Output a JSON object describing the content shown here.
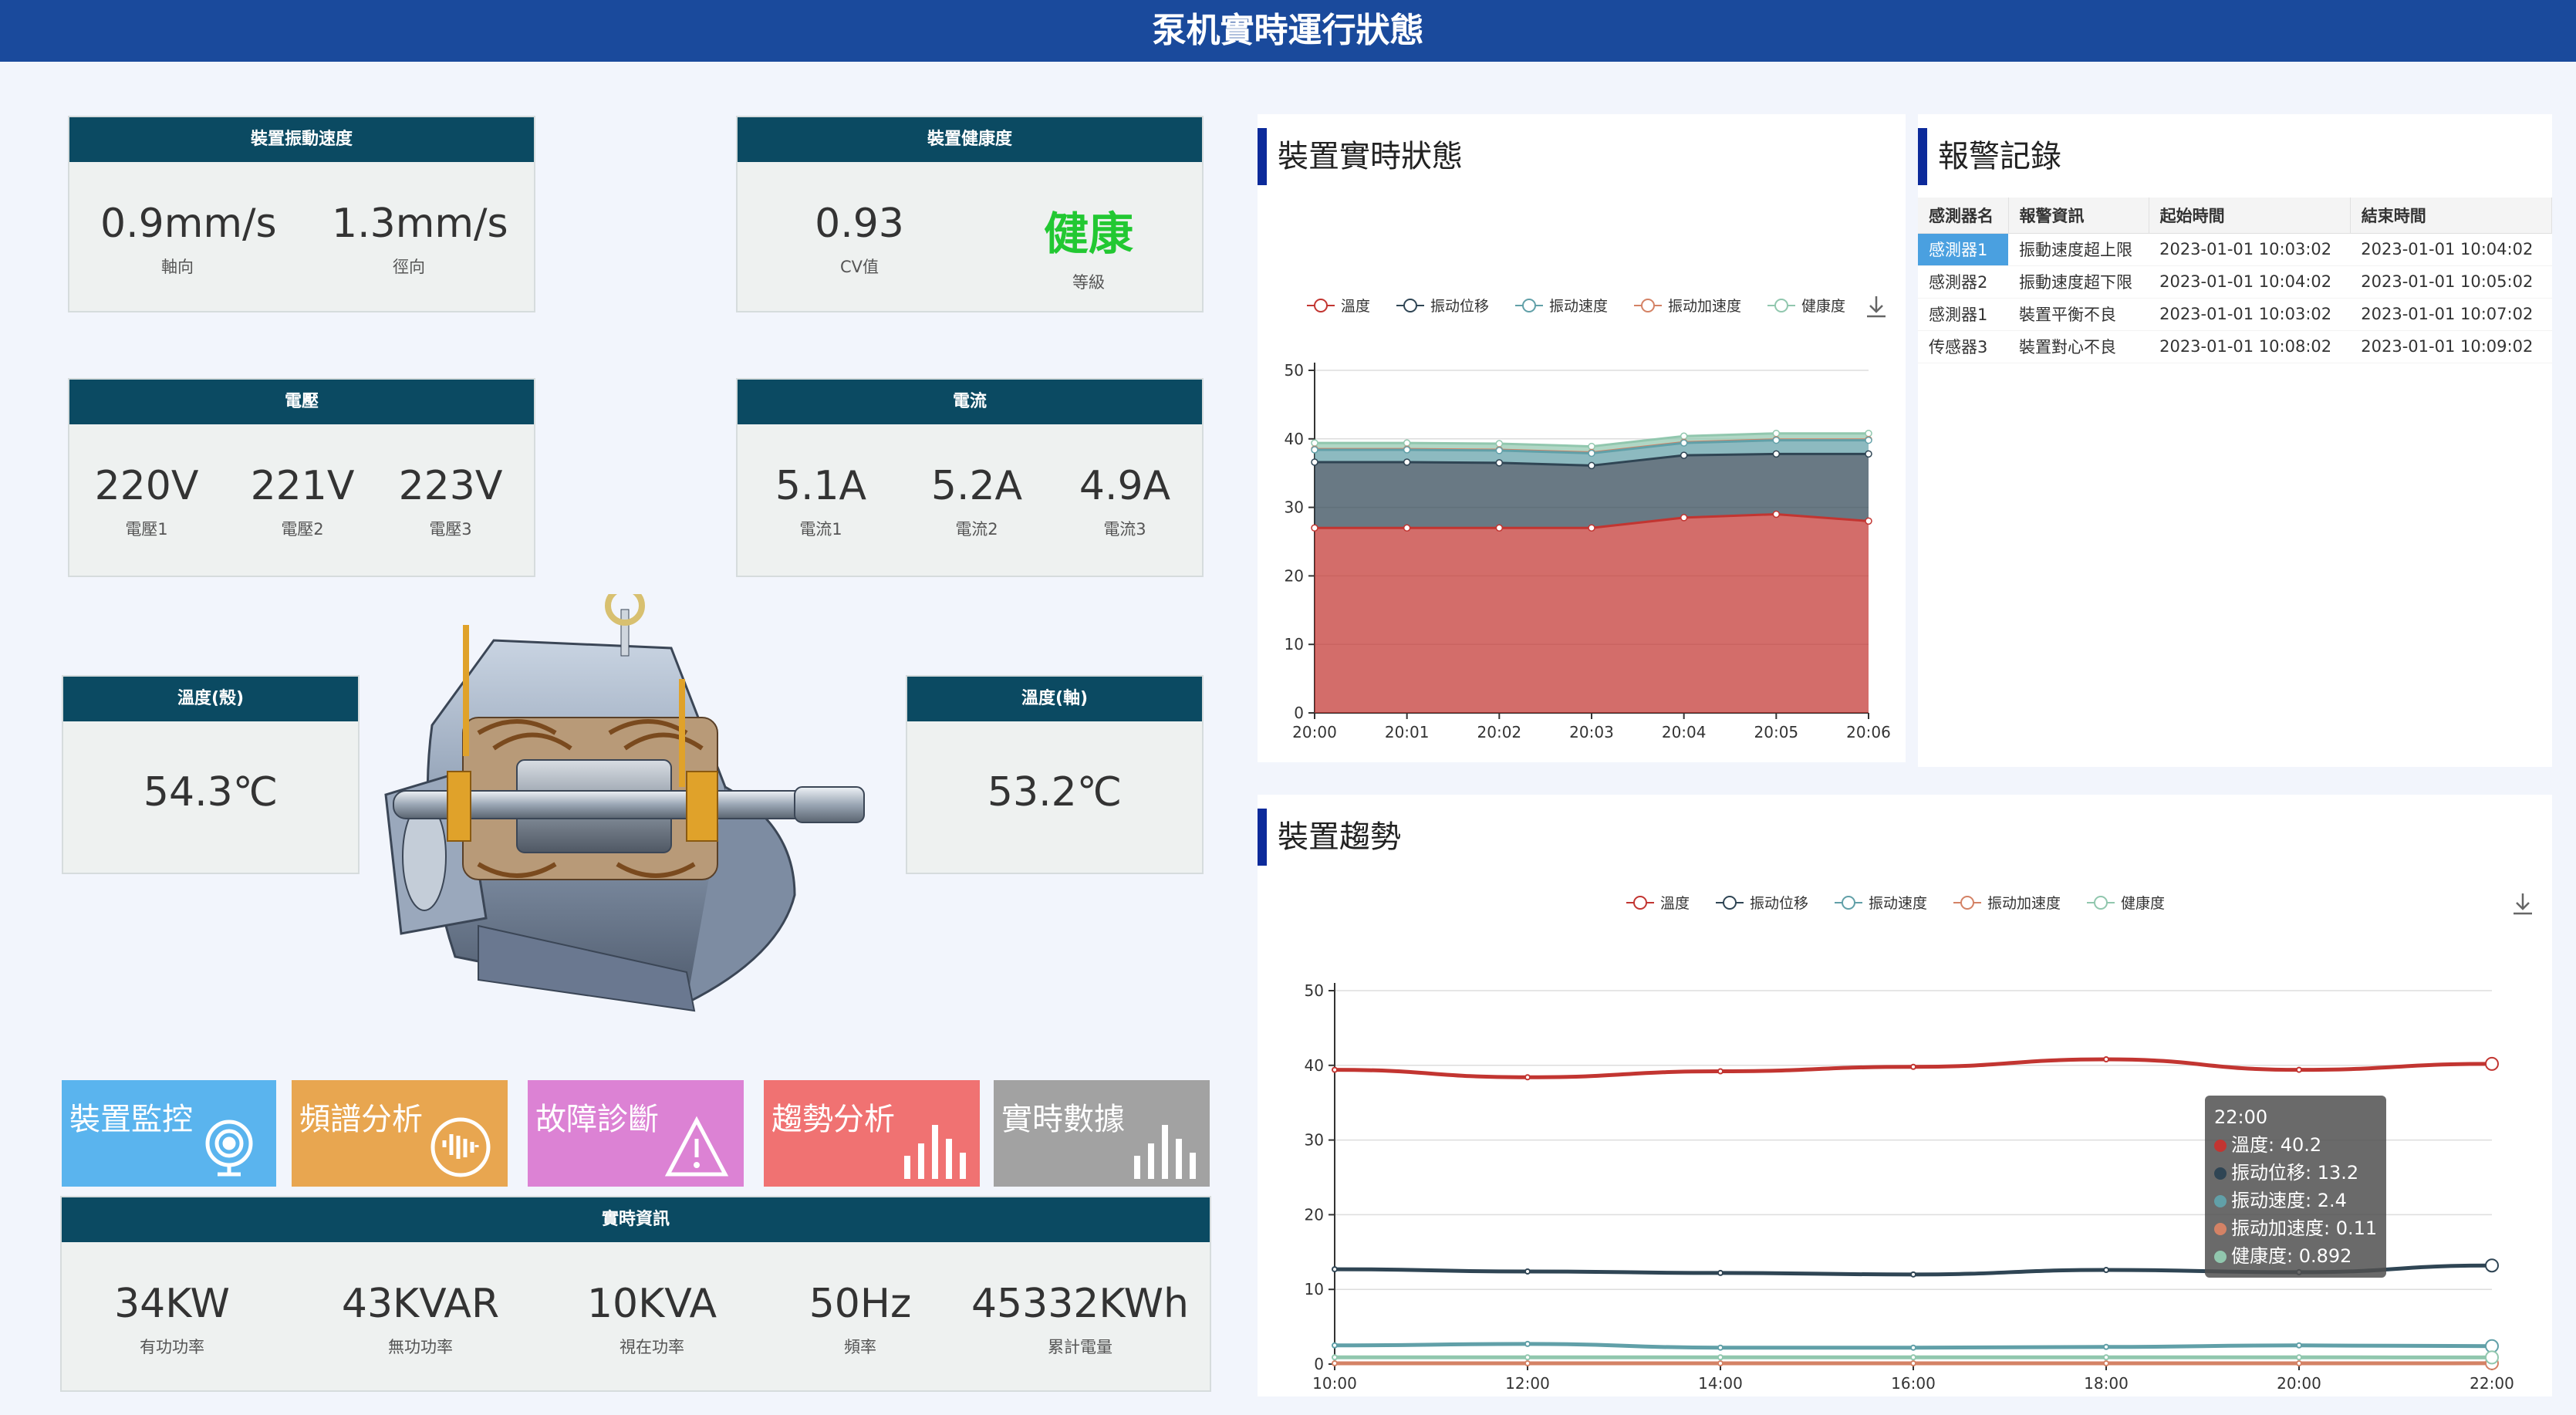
{
  "header": {
    "title": "泵机實時運行狀態"
  },
  "vibration": {
    "title": "裝置振動速度",
    "cells": [
      {
        "value": "0.9mm/s",
        "label": "軸向"
      },
      {
        "value": "1.3mm/s",
        "label": "徑向"
      }
    ]
  },
  "health": {
    "title": "裝置健康度",
    "cv_value": "0.93",
    "cv_label": "CV值",
    "grade_value": "健康",
    "grade_label": "等級",
    "grade_color": "#22c832"
  },
  "voltage": {
    "title": "電壓",
    "cells": [
      {
        "value": "220V",
        "label": "電壓1"
      },
      {
        "value": "221V",
        "label": "電壓2"
      },
      {
        "value": "223V",
        "label": "電壓3"
      }
    ]
  },
  "current": {
    "title": "電流",
    "cells": [
      {
        "value": "5.1A",
        "label": "電流1"
      },
      {
        "value": "5.2A",
        "label": "電流2"
      },
      {
        "value": "4.9A",
        "label": "電流3"
      }
    ]
  },
  "temp_shell": {
    "title": "溫度(殼)",
    "value": "54.3℃"
  },
  "temp_shaft": {
    "title": "溫度(軸)",
    "value": "53.2℃"
  },
  "tiles": [
    {
      "label": "裝置監控",
      "icon": "camera-icon",
      "color": "#5ab4ee"
    },
    {
      "label": "頻譜分析",
      "icon": "waveform-icon",
      "color": "#e8a650"
    },
    {
      "label": "故障診斷",
      "icon": "warning-icon",
      "color": "#dc82d4"
    },
    {
      "label": "趨勢分析",
      "icon": "bar-chart-icon",
      "color": "#f07272"
    },
    {
      "label": "實時數據",
      "icon": "bar-chart-icon",
      "color": "#a2a2a2"
    }
  ],
  "realtime": {
    "title": "實時資訊",
    "cells": [
      {
        "value": "34KW",
        "label": "有功功率"
      },
      {
        "value": "43KVAR",
        "label": "無功功率"
      },
      {
        "value": "10KVA",
        "label": "視在功率"
      },
      {
        "value": "50Hz",
        "label": "頻率"
      },
      {
        "value": "45332KWh",
        "label": "累計電量"
      }
    ]
  },
  "status_panel": {
    "title": "裝置實時狀態"
  },
  "alarm_panel": {
    "title": "報警記錄",
    "columns": [
      "感測器名",
      "報警資訊",
      "起始時間",
      "結束時間"
    ],
    "rows": [
      [
        "感測器1",
        "振動速度超上限",
        "2023-01-01 10:03:02",
        "2023-01-01 10:04:02"
      ],
      [
        "感測器2",
        "振動速度超下限",
        "2023-01-01 10:04:02",
        "2023-01-01 10:05:02"
      ],
      [
        "感測器1",
        "裝置平衡不良",
        "2023-01-01 10:03:02",
        "2023-01-01 10:07:02"
      ],
      [
        "传感器3",
        "裝置對心不良",
        "2023-01-01 10:08:02",
        "2023-01-01 10:09:02"
      ]
    ]
  },
  "trend_panel": {
    "title": "裝置趨勢"
  },
  "series_colors": [
    "#c23531",
    "#2f4554",
    "#61a0a8",
    "#d48265",
    "#91c7ae"
  ],
  "chart_data": [
    {
      "type": "area",
      "stacked": true,
      "categories": [
        "20:00",
        "20:01",
        "20:02",
        "20:03",
        "20:04",
        "20:05",
        "20:06"
      ],
      "ylim": [
        0,
        50
      ],
      "yticks": [
        0,
        10,
        20,
        30,
        40,
        50
      ],
      "legend_position": "top",
      "series": [
        {
          "name": "溫度",
          "values": [
            27.0,
            27.0,
            27.0,
            27.0,
            28.5,
            29.0,
            28.0
          ]
        },
        {
          "name": "振动位移",
          "values": [
            9.6,
            9.6,
            9.5,
            9.1,
            9.1,
            8.8,
            9.8
          ]
        },
        {
          "name": "振动速度",
          "values": [
            1.8,
            1.8,
            1.8,
            1.8,
            1.8,
            2.0,
            2.0
          ]
        },
        {
          "name": "振动加速度",
          "values": [
            0.1,
            0.1,
            0.1,
            0.1,
            0.1,
            0.1,
            0.1
          ]
        },
        {
          "name": "健康度",
          "values": [
            0.9,
            0.9,
            0.9,
            0.9,
            0.9,
            0.9,
            0.9
          ]
        }
      ]
    },
    {
      "type": "line",
      "categories": [
        "10:00",
        "12:00",
        "14:00",
        "16:00",
        "18:00",
        "20:00",
        "22:00"
      ],
      "ylim": [
        0,
        50
      ],
      "yticks": [
        0,
        10,
        20,
        30,
        40,
        50
      ],
      "legend_position": "top",
      "series": [
        {
          "name": "溫度",
          "values": [
            39.4,
            38.4,
            39.2,
            39.8,
            40.8,
            39.4,
            40.2
          ]
        },
        {
          "name": "振动位移",
          "values": [
            12.7,
            12.4,
            12.2,
            12.0,
            12.6,
            12.3,
            13.2
          ]
        },
        {
          "name": "振动速度",
          "values": [
            2.5,
            2.7,
            2.2,
            2.2,
            2.3,
            2.5,
            2.4
          ]
        },
        {
          "name": "振动加速度",
          "values": [
            0.1,
            0.1,
            0.1,
            0.1,
            0.1,
            0.1,
            0.11
          ]
        },
        {
          "name": "健康度",
          "values": [
            0.9,
            0.9,
            0.9,
            0.9,
            0.9,
            0.9,
            0.892
          ]
        }
      ],
      "tooltip": {
        "title": "22:00",
        "lines": [
          "溫度: 40.2",
          "振动位移: 13.2",
          "振动速度: 2.4",
          "振动加速度: 0.11",
          "健康度: 0.892"
        ]
      }
    }
  ]
}
